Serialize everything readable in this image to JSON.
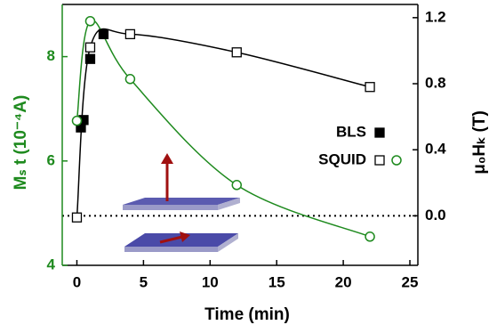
{
  "chart_data": {
    "type": "scatter",
    "x_label": "Time (min)",
    "y_label": "Mₛ t (10⁻⁴A)",
    "y2_label": "μ₀Hₖ (T)",
    "xlim": [
      -1.1,
      25.6
    ],
    "xticks": [
      0,
      5,
      10,
      15,
      20,
      25
    ],
    "ylim": [
      4,
      9
    ],
    "yticks": [
      4,
      6,
      8
    ],
    "y2lim": [
      -0.3,
      1.28
    ],
    "y2ticks": [
      {
        "value": 0,
        "label": "0.0"
      },
      0.4,
      0.8,
      1.2
    ],
    "hline_y2": 0,
    "y_color": "#1e8a1e",
    "series": [
      {
        "name": "BLS",
        "color": "#000000",
        "axis": "y2",
        "marker": "filled-square",
        "x": [
          0.3,
          0.5,
          1,
          2
        ],
        "values": [
          0.535,
          0.58,
          0.95,
          1.1
        ]
      },
      {
        "name": "SQUID",
        "color": "#000000",
        "axis": "y2",
        "marker": "open-square",
        "line": true,
        "x": [
          0,
          1,
          4,
          12,
          22
        ],
        "values": [
          -0.01,
          1.02,
          1.1,
          0.99,
          0.78
        ]
      },
      {
        "color": "#1e8a1e",
        "axis": "y",
        "marker": "open-circle",
        "line": true,
        "x": [
          0,
          1,
          4,
          12,
          22
        ],
        "values": [
          6.77,
          8.68,
          7.57,
          5.54,
          4.55
        ]
      }
    ]
  }
}
